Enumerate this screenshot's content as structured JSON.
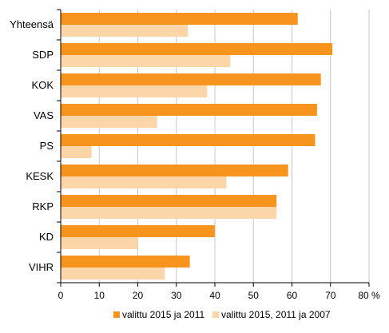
{
  "chart_data": {
    "type": "bar",
    "orientation": "horizontal",
    "categories": [
      "Yhteensä",
      "SDP",
      "KOK",
      "VAS",
      "PS",
      "KESK",
      "RKP",
      "KD",
      "VIHR"
    ],
    "series": [
      {
        "name": "valittu 2015 ja 2011",
        "color": "#f7941d",
        "values": [
          61.5,
          70.5,
          67.5,
          66.5,
          66.0,
          59.0,
          56.0,
          40.0,
          33.5
        ]
      },
      {
        "name": "valittu 2015, 2011 ja 2007",
        "color": "#fcd5a8",
        "values": [
          33.0,
          44.0,
          38.0,
          25.0,
          8.0,
          43.0,
          56.0,
          20.0,
          27.0
        ]
      }
    ],
    "xlim": [
      0,
      80
    ],
    "x_ticks": [
      "0",
      "10",
      "20",
      "30",
      "40",
      "50",
      "60",
      "70",
      "80 %"
    ],
    "grid": true,
    "legend_position": "bottom"
  }
}
